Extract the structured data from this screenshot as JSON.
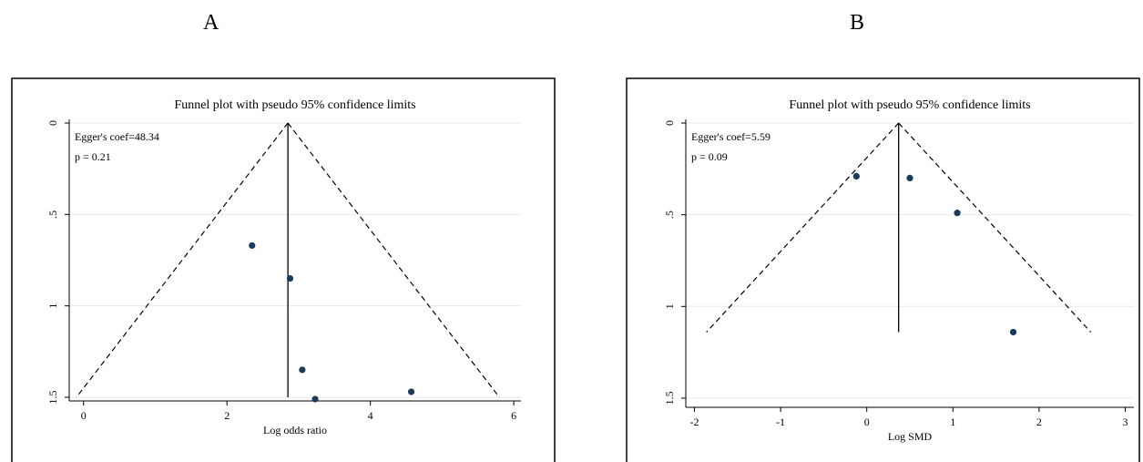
{
  "panels": {
    "a": {
      "letter": "A"
    },
    "b": {
      "letter": "B"
    }
  },
  "colors": {
    "point": "#1a3a5c",
    "grid": "#e6eaee",
    "frame": "#000000"
  },
  "chart_data": [
    {
      "type": "scatter",
      "title": "Funnel plot with pseudo 95% confidence limits",
      "xlabel": "Log odds ratio",
      "ylabel": "",
      "xlim": [
        -0.2,
        6.1
      ],
      "ylim": [
        1.52,
        -0.02
      ],
      "y_reversed": true,
      "x_ticks": [
        "0",
        "2",
        "4",
        "6"
      ],
      "y_ticks": [
        "0",
        ".5",
        "1",
        "1.5"
      ],
      "grid": true,
      "annotations": [
        "Egger's coef=48.34",
        "p = 0.21"
      ],
      "pooled_estimate": 2.85,
      "funnel": {
        "apex": [
          2.85,
          0
        ],
        "left_base": [
          -0.1,
          1.5
        ],
        "right_base": [
          5.8,
          1.5
        ]
      },
      "points": [
        {
          "x": 2.35,
          "y": 0.67
        },
        {
          "x": 2.88,
          "y": 0.85
        },
        {
          "x": 3.05,
          "y": 1.35
        },
        {
          "x": 3.23,
          "y": 1.51
        },
        {
          "x": 4.57,
          "y": 1.47
        }
      ]
    },
    {
      "type": "scatter",
      "title": "Funnel plot with pseudo 95% confidence limits",
      "xlabel": "Log SMD",
      "ylabel": "",
      "xlim": [
        -2.1,
        3.1
      ],
      "ylim": [
        1.55,
        -0.02
      ],
      "y_reversed": true,
      "x_ticks": [
        "-2",
        "-1",
        "0",
        "1",
        "2",
        "3"
      ],
      "y_ticks": [
        "0",
        ".5",
        "1",
        "1.5"
      ],
      "grid": true,
      "annotations": [
        "Egger's coef=5.59",
        "p = 0.09"
      ],
      "pooled_estimate": 0.37,
      "funnel": {
        "apex": [
          0.37,
          0
        ],
        "left_base": [
          -1.86,
          1.14
        ],
        "right_base": [
          2.6,
          1.14
        ]
      },
      "points": [
        {
          "x": -0.12,
          "y": 0.29
        },
        {
          "x": 0.5,
          "y": 0.3
        },
        {
          "x": 1.05,
          "y": 0.49
        },
        {
          "x": 1.7,
          "y": 1.14
        }
      ]
    }
  ]
}
